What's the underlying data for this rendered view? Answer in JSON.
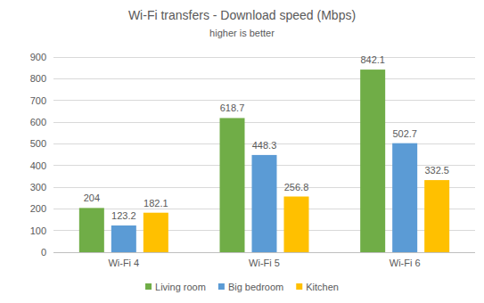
{
  "chart_data": {
    "type": "bar",
    "title": "Wi-Fi transfers - Download speed (Mbps)",
    "subtitle": "higher is better",
    "categories": [
      "Wi-Fi 4",
      "Wi-Fi 5",
      "Wi-Fi 6"
    ],
    "series": [
      {
        "name": "Living room",
        "color": "#70ad47",
        "values": [
          204,
          618.7,
          842.1
        ]
      },
      {
        "name": "Big bedroom",
        "color": "#5b9bd5",
        "values": [
          123.2,
          448.3,
          502.7
        ]
      },
      {
        "name": "Kitchen",
        "color": "#ffc000",
        "values": [
          182.1,
          256.8,
          332.5
        ]
      }
    ],
    "ylim": [
      0,
      900
    ],
    "yticks": [
      0,
      100,
      200,
      300,
      400,
      500,
      600,
      700,
      800,
      900
    ],
    "grid": true,
    "data_labels": true,
    "legend": "bottom"
  }
}
